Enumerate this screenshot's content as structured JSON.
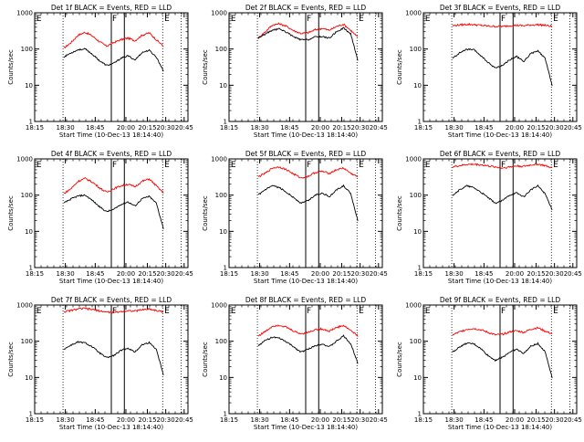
{
  "chart_data": {
    "type": "line",
    "y_scale": "log",
    "ylim": [
      1,
      1000
    ],
    "ylabel": "Counts/sec",
    "xlabel": "Start Time (10-Dec-13 18:14:40)",
    "x_tick_labels": [
      "18:15",
      "18:30",
      "18:45",
      "20:00",
      "20:15",
      "20:30",
      "20:45"
    ],
    "y_tick_labels": [
      "1",
      "10",
      "100",
      "1000"
    ],
    "marker_letters": [
      "E",
      "F",
      "E"
    ],
    "series_colors": {
      "events": "#000000",
      "lld": "#ff0000"
    },
    "panels": [
      {
        "title": "Det 1f BLACK = Events, RED = LLD",
        "events": [
          60,
          78,
          95,
          100,
          72,
          48,
          35,
          40,
          55,
          65,
          50,
          80,
          92,
          60,
          25
        ],
        "lld": [
          105,
          150,
          240,
          290,
          230,
          160,
          120,
          150,
          180,
          200,
          170,
          240,
          280,
          180,
          120
        ]
      },
      {
        "title": "Det 2f BLACK = Events, RED = LLD",
        "events": [
          200,
          260,
          330,
          360,
          290,
          215,
          180,
          180,
          215,
          220,
          200,
          300,
          380,
          260,
          50
        ],
        "lld": [
          200,
          300,
          460,
          500,
          420,
          320,
          270,
          280,
          340,
          370,
          330,
          420,
          480,
          330,
          210
        ]
      },
      {
        "title": "Det 3f BLACK = Events, RED = LLD",
        "events": [
          55,
          78,
          98,
          95,
          65,
          42,
          30,
          35,
          50,
          62,
          45,
          75,
          88,
          55,
          10
        ],
        "lld": [
          440,
          460,
          480,
          470,
          450,
          430,
          420,
          420,
          440,
          450,
          440,
          460,
          470,
          450,
          420
        ]
      },
      {
        "title": "Det 4f BLACK = Events, RED = LLD",
        "events": [
          60,
          78,
          95,
          100,
          72,
          48,
          35,
          40,
          55,
          65,
          50,
          80,
          92,
          60,
          12
        ],
        "lld": [
          110,
          150,
          240,
          290,
          230,
          160,
          120,
          150,
          180,
          200,
          170,
          240,
          280,
          180,
          115
        ]
      },
      {
        "title": "Det 5f BLACK = Events, RED = LLD",
        "events": [
          100,
          140,
          180,
          160,
          120,
          85,
          60,
          70,
          100,
          115,
          90,
          140,
          180,
          110,
          20
        ],
        "lld": [
          320,
          400,
          560,
          600,
          500,
          380,
          300,
          330,
          420,
          450,
          400,
          500,
          560,
          400,
          320
        ]
      },
      {
        "title": "Det 6f BLACK = Events, RED = LLD",
        "events": [
          100,
          140,
          180,
          160,
          120,
          85,
          60,
          70,
          100,
          115,
          90,
          140,
          180,
          110,
          40
        ],
        "lld": [
          600,
          650,
          700,
          710,
          690,
          640,
          600,
          560,
          600,
          640,
          620,
          680,
          720,
          650,
          560
        ]
      },
      {
        "title": "Det 7f BLACK = Events, RED = LLD",
        "events": [
          60,
          78,
          95,
          90,
          70,
          48,
          35,
          40,
          55,
          65,
          50,
          80,
          92,
          60,
          12
        ],
        "lld": [
          650,
          700,
          780,
          800,
          750,
          690,
          640,
          620,
          660,
          700,
          680,
          740,
          780,
          700,
          650
        ]
      },
      {
        "title": "Det 8f BLACK = Events, RED = LLD",
        "events": [
          75,
          105,
          130,
          120,
          95,
          70,
          50,
          60,
          75,
          85,
          70,
          100,
          140,
          85,
          25
        ],
        "lld": [
          140,
          185,
          260,
          280,
          240,
          190,
          160,
          175,
          210,
          220,
          190,
          240,
          270,
          200,
          140
        ]
      },
      {
        "title": "Det 9f BLACK = Events, RED = LLD",
        "events": [
          50,
          70,
          88,
          85,
          62,
          40,
          30,
          36,
          50,
          60,
          46,
          72,
          86,
          52,
          10
        ],
        "lld": [
          150,
          180,
          215,
          225,
          205,
          175,
          150,
          155,
          180,
          195,
          175,
          215,
          235,
          190,
          160
        ]
      }
    ]
  }
}
